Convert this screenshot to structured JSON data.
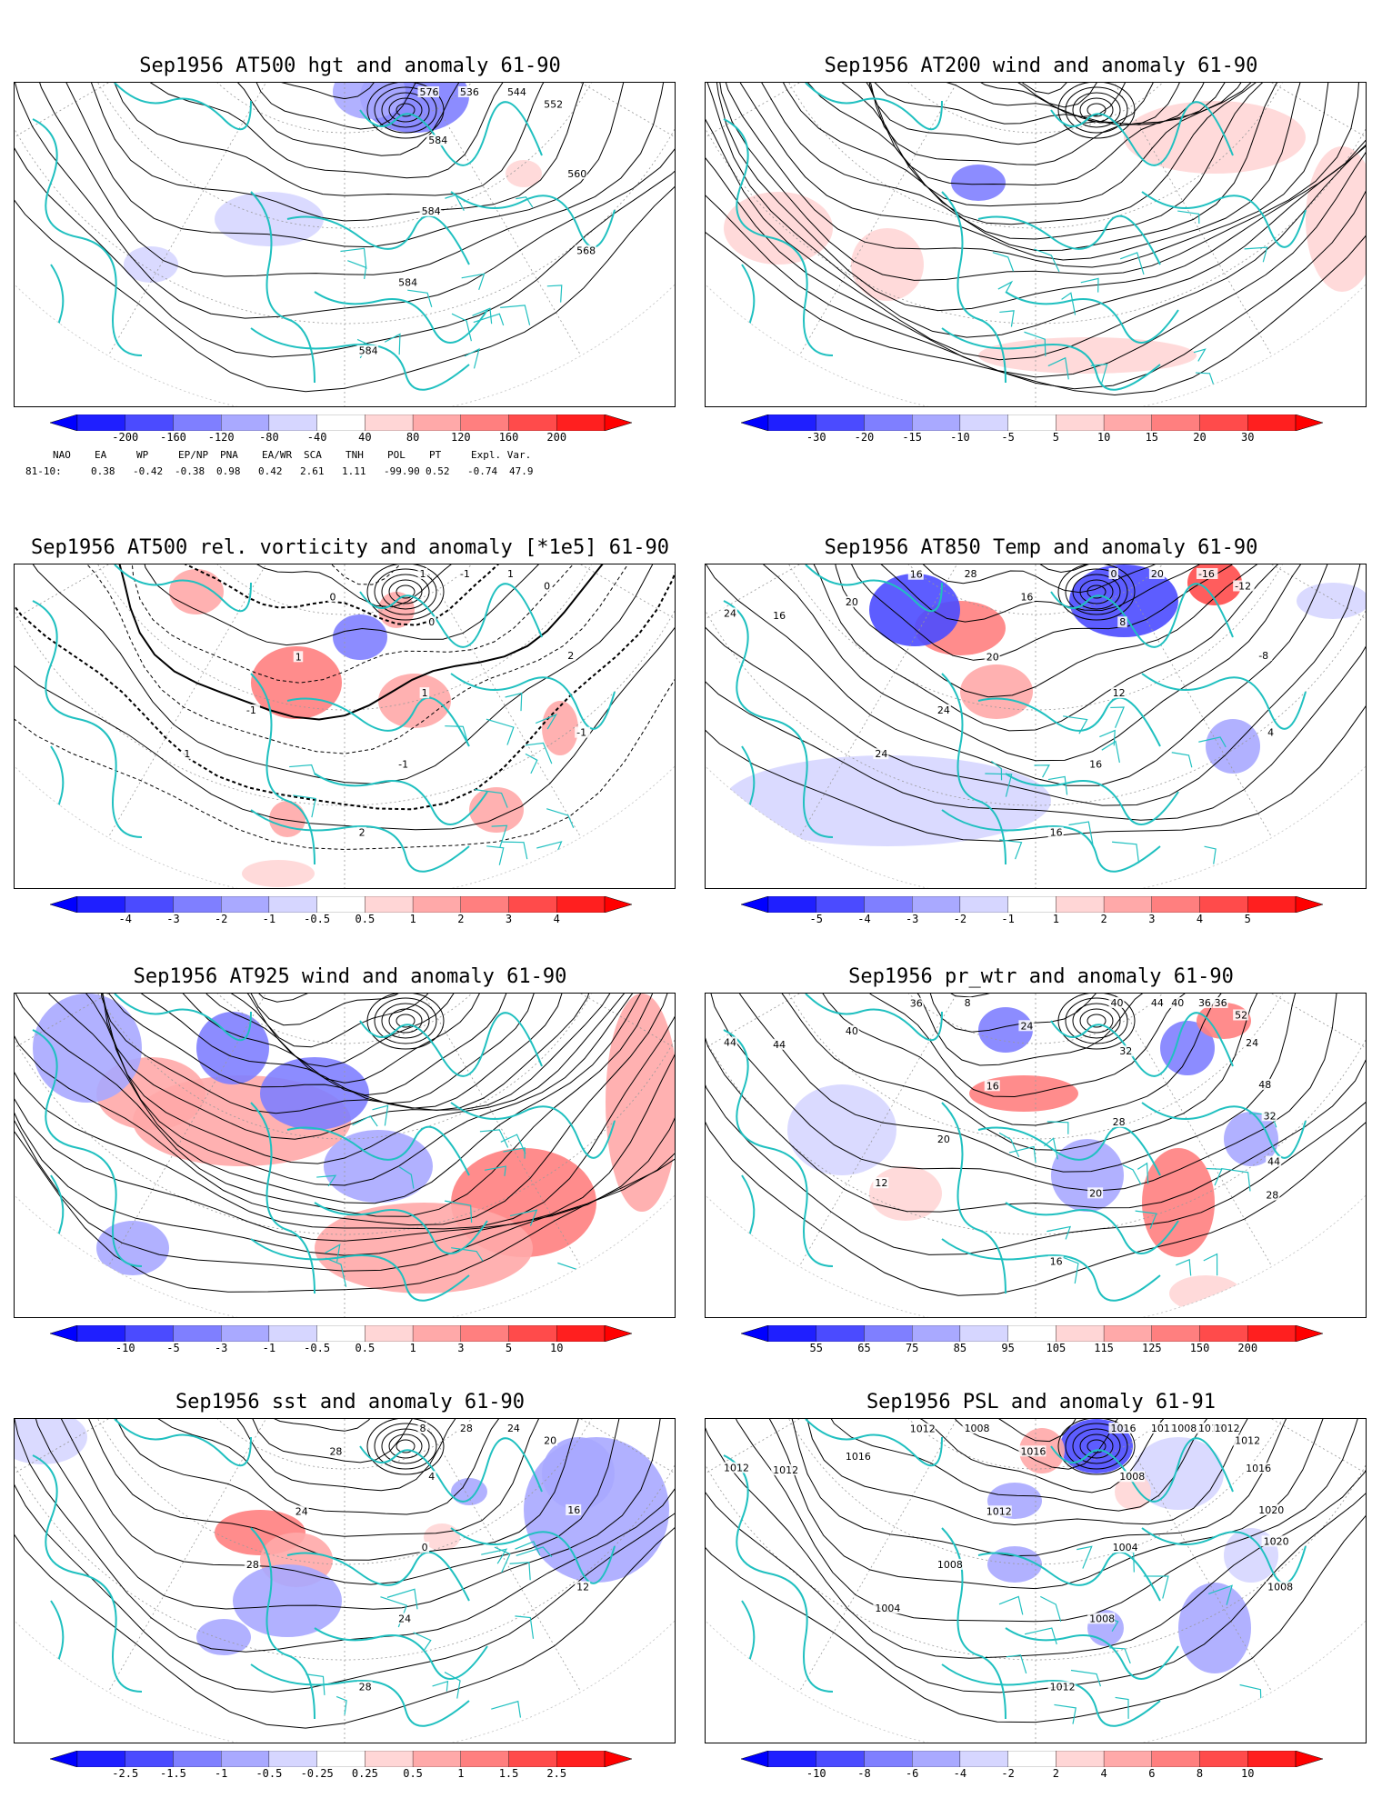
{
  "panels": [
    {
      "title": "Sep1956 AT500 hgt and anomaly 61-90",
      "colorbar": [
        "-200",
        "-160",
        "-120",
        "-80",
        "-40",
        "40",
        "80",
        "120",
        "160",
        "200"
      ],
      "contour_labels": [
        "536",
        "544",
        "552",
        "560",
        "568",
        "576",
        "584",
        "584",
        "584",
        "584"
      ]
    },
    {
      "title": "Sep1956 AT200 wind and anomaly 61-90",
      "colorbar": [
        "-30",
        "-20",
        "-15",
        "-10",
        "-5",
        "5",
        "10",
        "15",
        "20",
        "30"
      ],
      "contour_labels": []
    },
    {
      "title": "Sep1956 AT500 rel. vorticity and anomaly [*1e5] 61-90",
      "colorbar": [
        "-4",
        "-3",
        "-2",
        "-1",
        "-0.5",
        "0.5",
        "1",
        "2",
        "3",
        "4"
      ],
      "contour_labels": [
        "-1",
        "1",
        "0",
        "2",
        "-1",
        "1",
        "0",
        "1",
        "-1",
        "2",
        "0",
        "1",
        "-1",
        "1"
      ]
    },
    {
      "title": "Sep1956 AT850 Temp and anomaly 61-90",
      "colorbar": [
        "-5",
        "-4",
        "-3",
        "-2",
        "-1",
        "1",
        "2",
        "3",
        "4",
        "5"
      ],
      "contour_labels": [
        "20",
        "-16",
        "-12",
        "-8",
        "4",
        "0",
        "8",
        "12",
        "16",
        "16",
        "16",
        "20",
        "24",
        "24",
        "28",
        "16",
        "20",
        "16",
        "24"
      ]
    },
    {
      "title": "Sep1956 AT925 wind and anomaly 61-90",
      "colorbar": [
        "-10",
        "-5",
        "-3",
        "-1",
        "-0.5",
        "0.5",
        "1",
        "3",
        "5",
        "10"
      ],
      "contour_labels": []
    },
    {
      "title": "Sep1956 pr_wtr and anomaly 61-90",
      "colorbar": [
        "55",
        "65",
        "75",
        "85",
        "95",
        "105",
        "115",
        "125",
        "150",
        "200"
      ],
      "contour_labels": [
        "44",
        "36",
        "52",
        "48",
        "44",
        "40",
        "32",
        "28",
        "20",
        "16",
        "24",
        "16",
        "20",
        "12",
        "8",
        "36",
        "40",
        "44",
        "44",
        "40",
        "36",
        "24",
        "32",
        "28"
      ]
    },
    {
      "title": "Sep1956 sst and anomaly 61-90",
      "colorbar": [
        "-2.5",
        "-1.5",
        "-1",
        "-0.5",
        "-0.25",
        "0.25",
        "0.5",
        "1",
        "1.5",
        "2.5"
      ],
      "contour_labels": [
        "28",
        "24",
        "20",
        "16",
        "12",
        "8",
        "4",
        "0",
        "24",
        "28",
        "28",
        "24",
        "28"
      ]
    },
    {
      "title": "Sep1956 PSL and anomaly 61-91",
      "colorbar": [
        "-10",
        "-8",
        "-6",
        "-4",
        "-2",
        "2",
        "4",
        "6",
        "8",
        "10"
      ],
      "contour_labels": [
        "1012",
        "1016",
        "1012",
        "1020",
        "1008",
        "1016",
        "1008",
        "1004",
        "1008",
        "1012",
        "1016",
        "1012",
        "1008",
        "1004",
        "1008",
        "1012",
        "1016",
        "1012",
        "1012",
        "1008",
        "1012",
        "1016",
        "1020"
      ]
    }
  ],
  "indices": {
    "header": [
      "NAO",
      "EA",
      "WP",
      "EP/NP",
      "PNA",
      "EA/WR",
      "SCA",
      "TNH",
      "POL",
      "PT",
      "Expl. Var."
    ],
    "row_label": "81-10:",
    "values": [
      "0.38",
      "-0.42",
      "-0.38",
      "0.98",
      "0.42",
      "2.61",
      "1.11",
      "-99.90",
      "0.52",
      "-0.74",
      "47.9"
    ]
  },
  "colors": {
    "coast": "#20c0c0",
    "blue_scale": [
      "#1f1fff",
      "#4b4bff",
      "#7f7fff",
      "#a9a9ff",
      "#d6d6ff"
    ],
    "red_scale": [
      "#ffd6d6",
      "#ffa9a9",
      "#ff7f7f",
      "#ff4b4b",
      "#ff1f1f"
    ]
  }
}
